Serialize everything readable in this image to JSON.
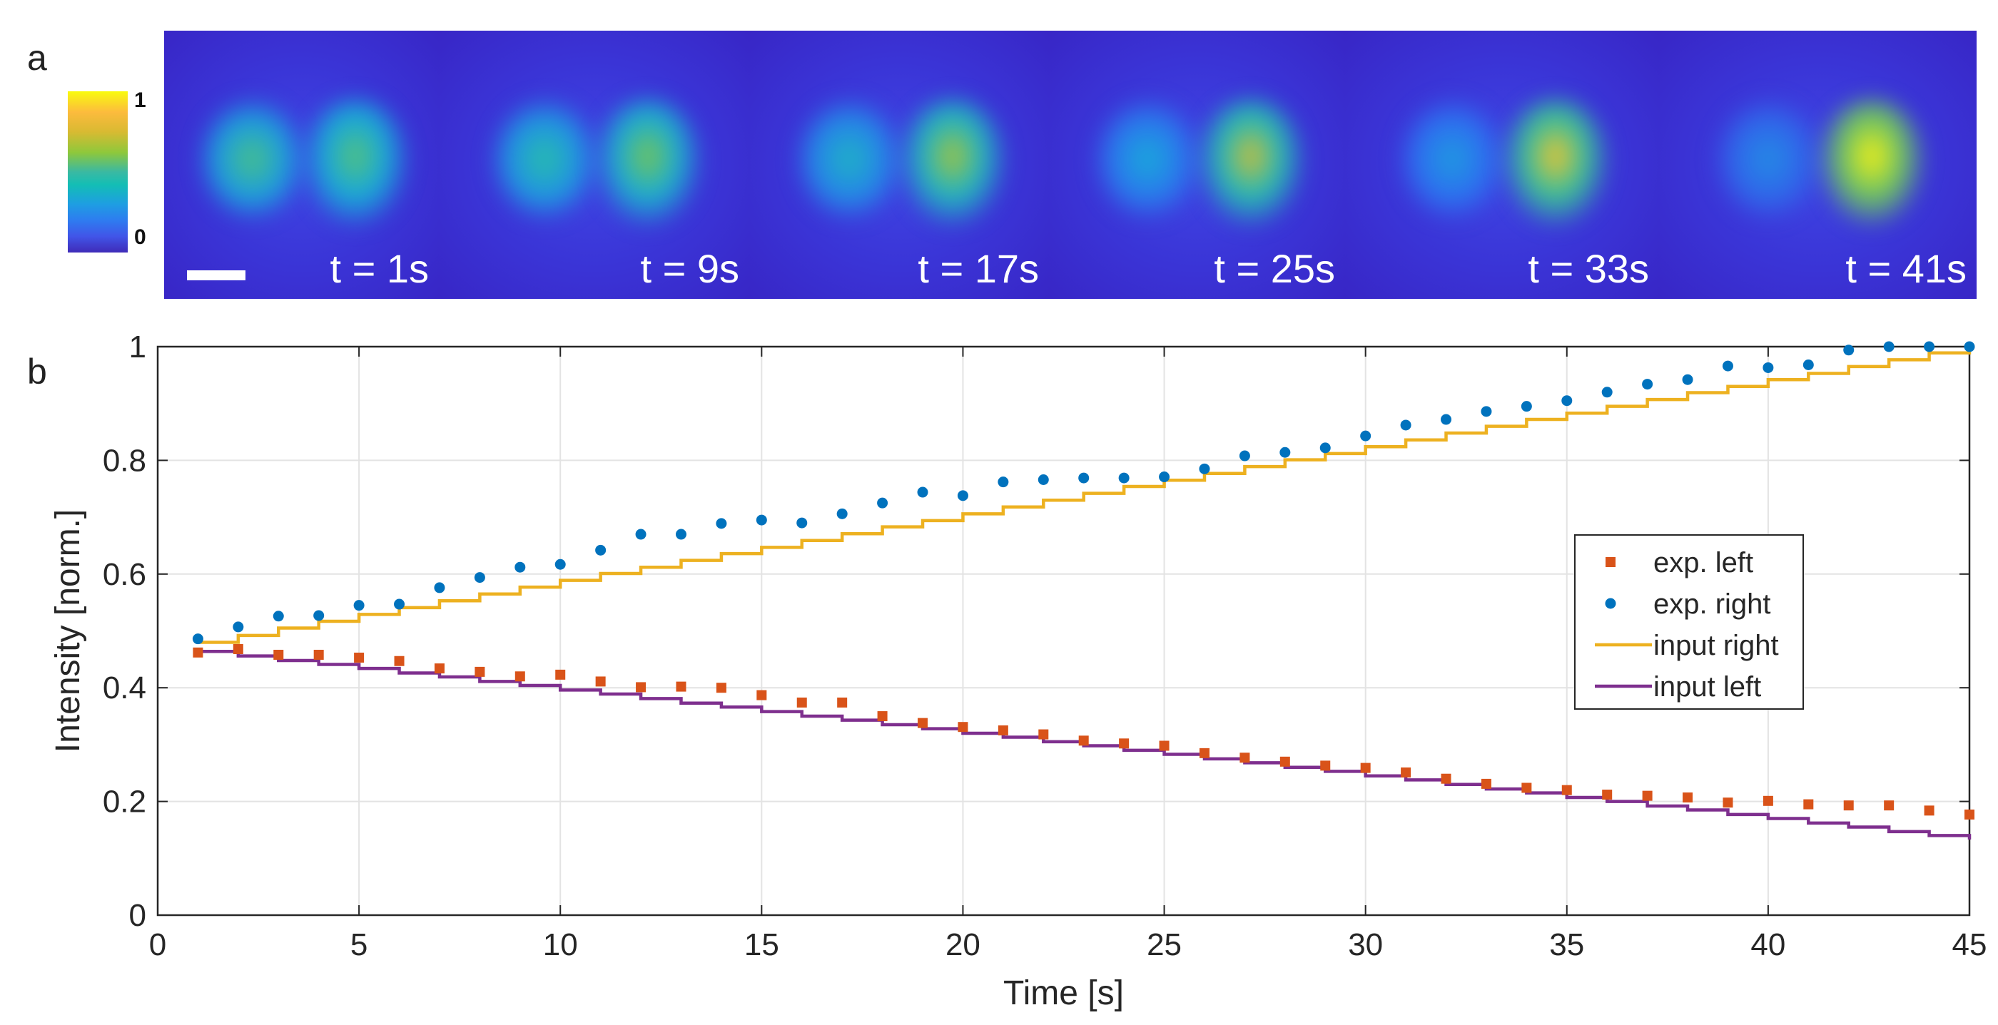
{
  "panel_a_label": "a",
  "panel_b_label": "b",
  "colorbar": {
    "max_label": "1",
    "min_label": "0"
  },
  "frames": [
    {
      "label": "t = 1s",
      "left": 0.6,
      "right": 0.62
    },
    {
      "label": "t = 9s",
      "left": 0.55,
      "right": 0.67
    },
    {
      "label": "t = 17s",
      "left": 0.47,
      "right": 0.74
    },
    {
      "label": "t = 25s",
      "left": 0.4,
      "right": 0.8
    },
    {
      "label": "t = 33s",
      "left": 0.35,
      "right": 0.88
    },
    {
      "label": "t = 41s",
      "left": 0.3,
      "right": 1.0
    }
  ],
  "colors": {
    "exp_left": "#d95319",
    "exp_right": "#0072bd",
    "input_right": "#edb120",
    "input_left": "#7e2f8e"
  },
  "chart_data": {
    "type": "scatter",
    "xlabel": "Time [s]",
    "ylabel": "Intensity [norm.]",
    "xlim": [
      0,
      45
    ],
    "ylim": [
      0,
      1
    ],
    "xticks": [
      0,
      5,
      10,
      15,
      20,
      25,
      30,
      35,
      40,
      45
    ],
    "yticks": [
      0,
      0.2,
      0.4,
      0.6,
      0.8,
      1
    ],
    "ytick_labels": [
      "0",
      "0.2",
      "0.4",
      "0.6",
      "0.8",
      "1"
    ],
    "grid": true,
    "legend_position": "right",
    "legend": [
      "exp. left",
      "exp. right",
      "input right",
      "input left"
    ],
    "x": [
      1,
      2,
      3,
      4,
      5,
      6,
      7,
      8,
      9,
      10,
      11,
      12,
      13,
      14,
      15,
      16,
      17,
      18,
      19,
      20,
      21,
      22,
      23,
      24,
      25,
      26,
      27,
      28,
      29,
      30,
      31,
      32,
      33,
      34,
      35,
      36,
      37,
      38,
      39,
      40,
      41,
      42,
      43,
      44,
      45
    ],
    "series": [
      {
        "name": "exp. left",
        "style": "square-markers",
        "values": [
          0.462,
          0.468,
          0.458,
          0.458,
          0.453,
          0.447,
          0.434,
          0.428,
          0.42,
          0.423,
          0.411,
          0.401,
          0.402,
          0.4,
          0.387,
          0.374,
          0.374,
          0.35,
          0.338,
          0.331,
          0.325,
          0.318,
          0.307,
          0.302,
          0.298,
          0.285,
          0.277,
          0.27,
          0.263,
          0.259,
          0.251,
          0.24,
          0.231,
          0.224,
          0.22,
          0.212,
          0.21,
          0.207,
          0.198,
          0.201,
          0.195,
          0.193,
          0.193,
          0.184,
          0.177
        ]
      },
      {
        "name": "exp. right",
        "style": "dot-markers",
        "values": [
          0.486,
          0.507,
          0.526,
          0.527,
          0.545,
          0.547,
          0.576,
          0.594,
          0.612,
          0.617,
          0.642,
          0.67,
          0.67,
          0.689,
          0.695,
          0.69,
          0.706,
          0.725,
          0.744,
          0.738,
          0.762,
          0.766,
          0.769,
          0.769,
          0.771,
          0.785,
          0.808,
          0.814,
          0.822,
          0.843,
          0.862,
          0.872,
          0.886,
          0.895,
          0.905,
          0.92,
          0.934,
          0.942,
          0.966,
          0.963,
          0.968,
          0.994,
          1.0,
          1.0,
          1.0
        ]
      },
      {
        "name": "input right",
        "style": "step-line",
        "values": [
          0.48,
          0.492,
          0.505,
          0.517,
          0.529,
          0.541,
          0.553,
          0.565,
          0.577,
          0.589,
          0.601,
          0.612,
          0.624,
          0.636,
          0.647,
          0.659,
          0.671,
          0.683,
          0.694,
          0.706,
          0.718,
          0.73,
          0.742,
          0.754,
          0.765,
          0.777,
          0.789,
          0.801,
          0.812,
          0.824,
          0.836,
          0.848,
          0.86,
          0.872,
          0.883,
          0.895,
          0.907,
          0.919,
          0.93,
          0.942,
          0.953,
          0.965,
          0.977,
          0.989,
          1.0
        ]
      },
      {
        "name": "input left",
        "style": "step-line",
        "values": [
          0.464,
          0.456,
          0.448,
          0.441,
          0.434,
          0.426,
          0.419,
          0.411,
          0.404,
          0.396,
          0.389,
          0.381,
          0.373,
          0.366,
          0.358,
          0.35,
          0.343,
          0.335,
          0.328,
          0.32,
          0.313,
          0.305,
          0.298,
          0.29,
          0.283,
          0.275,
          0.268,
          0.26,
          0.253,
          0.245,
          0.238,
          0.23,
          0.222,
          0.215,
          0.207,
          0.2,
          0.192,
          0.185,
          0.177,
          0.17,
          0.162,
          0.155,
          0.147,
          0.14,
          0.133
        ]
      }
    ]
  }
}
